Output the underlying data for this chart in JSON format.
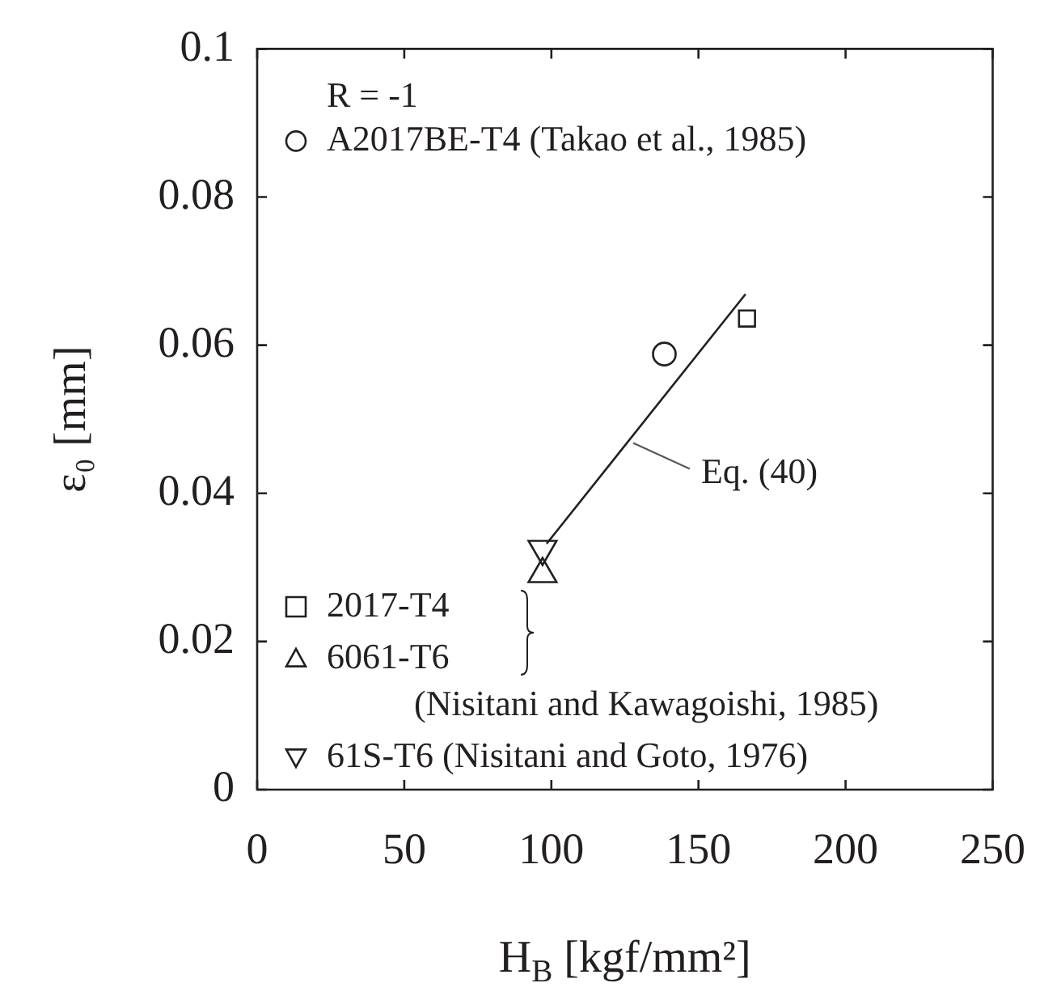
{
  "chart_data": {
    "type": "scatter",
    "xlabel": "H$_{B}$ [kgf/mm²]",
    "ylabel": "ε₀ [mm]",
    "xlim": [
      0,
      250
    ],
    "xticks": [
      0,
      50,
      100,
      150,
      200,
      250
    ],
    "ylim": [
      0,
      0.1
    ],
    "yticks": [
      0,
      0.02,
      0.04,
      0.06,
      0.08,
      0.1
    ],
    "grid": false,
    "legend": "left",
    "series": [
      {
        "name": "A2017BE-T4 (Takao et al., 1985)",
        "color": "#231f20",
        "marker": "circle",
        "x": [
          138.4
        ],
        "values": [
          0.0588
        ]
      },
      {
        "name": "2017-T4",
        "color": "#231f20",
        "marker": "square",
        "x": [
          166.5
        ],
        "values": [
          0.0636
        ]
      },
      {
        "name": "6061-T6",
        "color": "#231f20",
        "marker": "triangle",
        "x": [
          97
        ],
        "values": [
          0.0291
        ]
      },
      {
        "name": "61S-T6 (Nisitani and Goto, 1976)",
        "color": "#231f20",
        "marker": "triangle-down",
        "x": [
          97
        ],
        "values": [
          0.0325
        ]
      },
      {
        "type": "line",
        "color": "#231f20",
        "marker": "none",
        "line_style": "solid",
        "x": [
          98.4,
          166
        ],
        "values": [
          0.0332,
          0.0669
        ]
      }
    ],
    "annotations": [
      "R = -1",
      "(Nisitani and Kawagoishi, 1985)",
      {
        "text": "Eq. (40)",
        "x": 127.8,
        "y": 0.0468
      }
    ]
  }
}
